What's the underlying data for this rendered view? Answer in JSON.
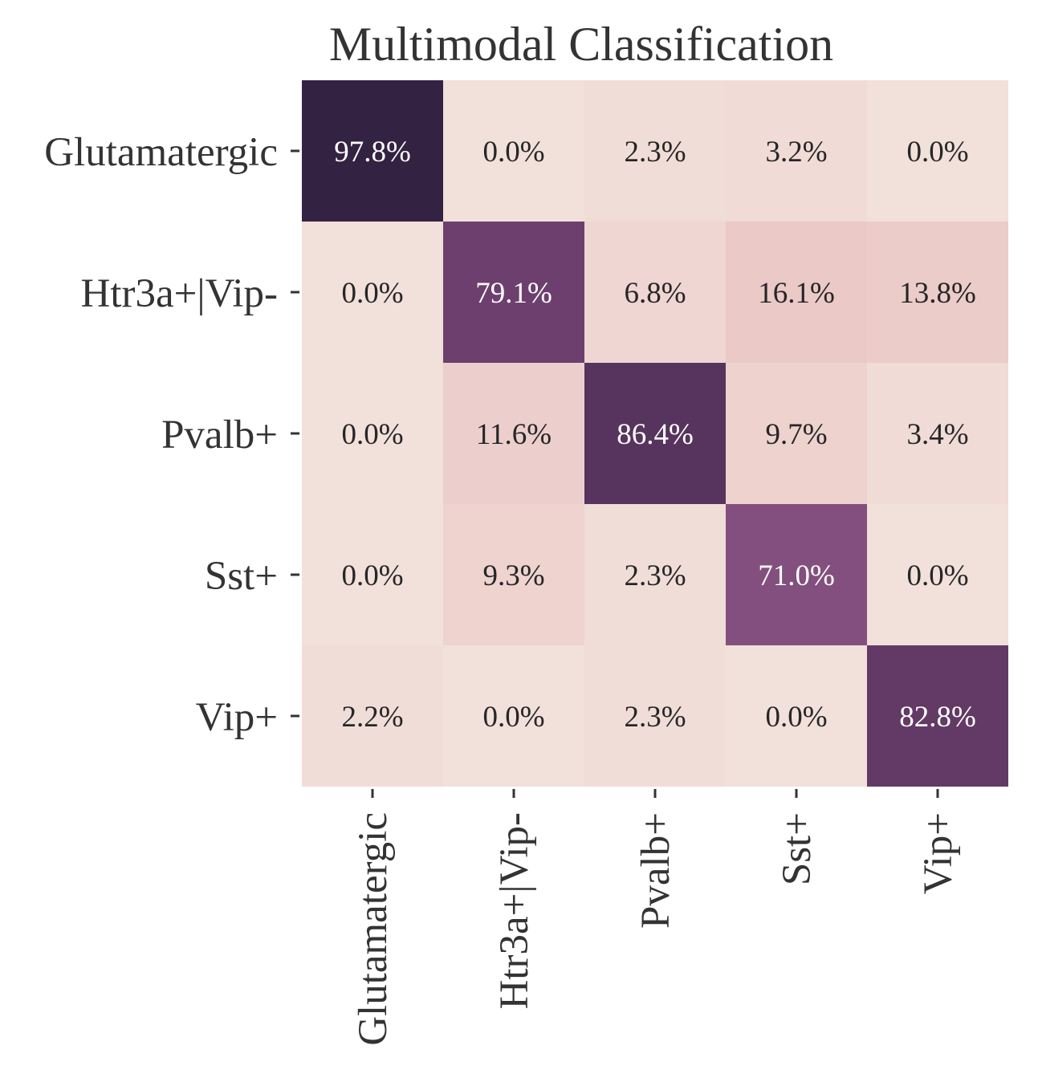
{
  "chart_data": {
    "type": "heatmap",
    "title": "Multimodal Classification",
    "xlabel": "",
    "ylabel": "",
    "rows": [
      "Glutamatergic",
      "Htr3a+|Vip-",
      "Pvalb+",
      "Sst+",
      "Vip+"
    ],
    "columns": [
      "Glutamatergic",
      "Htr3a+|Vip-",
      "Pvalb+",
      "Sst+",
      "Vip+"
    ],
    "values": [
      [
        97.8,
        0.0,
        2.3,
        3.2,
        0.0
      ],
      [
        0.0,
        79.1,
        6.8,
        16.1,
        13.8
      ],
      [
        0.0,
        11.6,
        86.4,
        9.7,
        3.4
      ],
      [
        0.0,
        9.3,
        2.3,
        71.0,
        0.0
      ],
      [
        2.2,
        0.0,
        2.3,
        0.0,
        82.8
      ]
    ],
    "labels": [
      [
        "97.8%",
        "0.0%",
        "2.3%",
        "3.2%",
        "0.0%"
      ],
      [
        "0.0%",
        "79.1%",
        "6.8%",
        "16.1%",
        "13.8%"
      ],
      [
        "0.0%",
        "11.6%",
        "86.4%",
        "9.7%",
        "3.4%"
      ],
      [
        "0.0%",
        "9.3%",
        "2.3%",
        "71.0%",
        "0.0%"
      ],
      [
        "2.2%",
        "0.0%",
        "2.3%",
        "0.0%",
        "82.8%"
      ]
    ],
    "value_range": [
      0,
      100
    ],
    "colormap": [
      "#f2e0da",
      "#e6bcbc",
      "#b47ca0",
      "#7a4677",
      "#2d1e3e"
    ],
    "label_colors": {
      "dark": "#262626",
      "light": "#ffffff"
    },
    "colorbar": false,
    "grid": false
  }
}
